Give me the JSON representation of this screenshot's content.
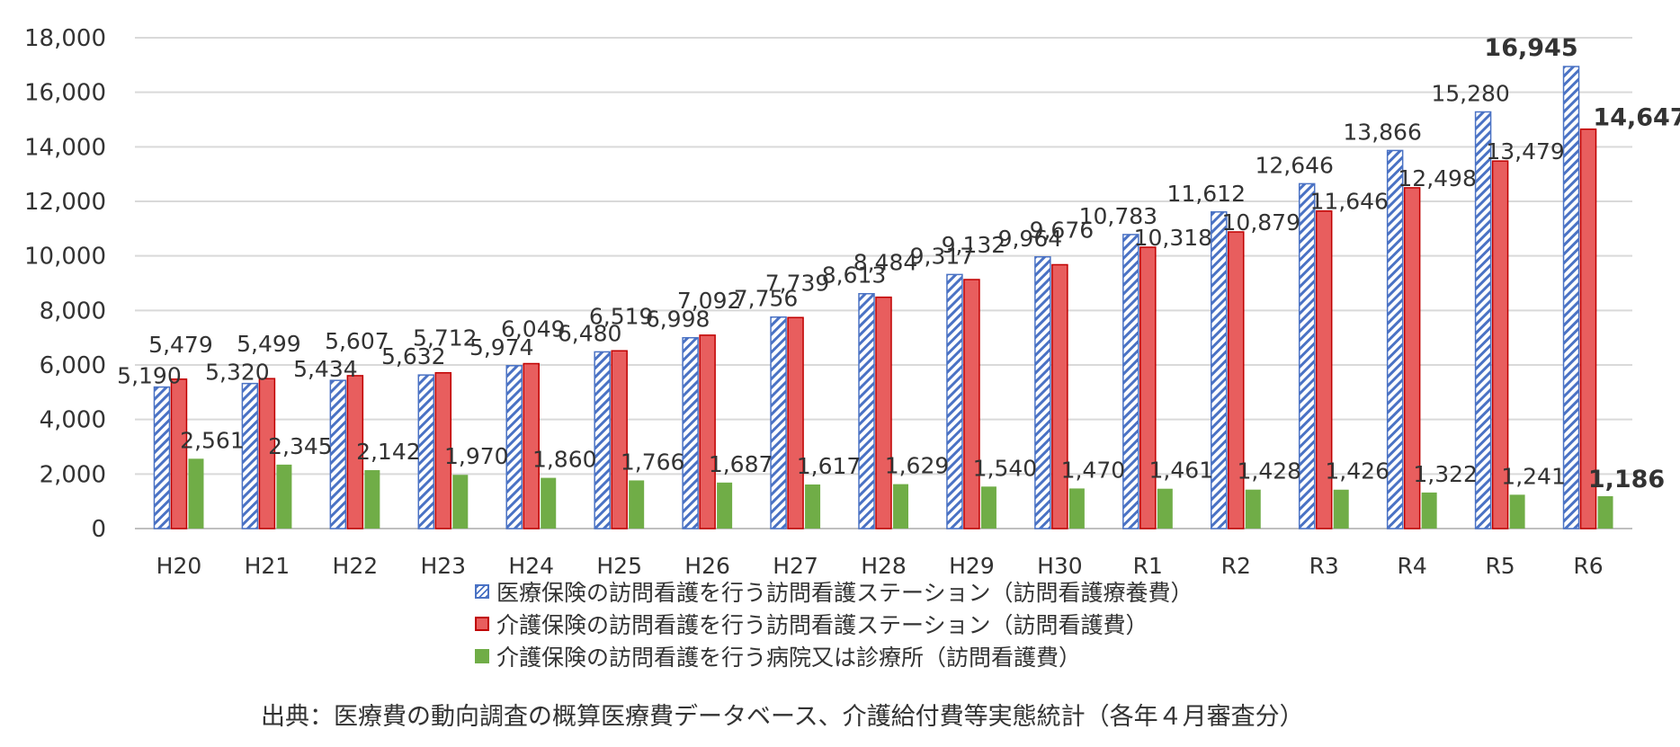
{
  "chart_data": {
    "type": "bar",
    "categories": [
      "H20",
      "H21",
      "H22",
      "H23",
      "H24",
      "H25",
      "H26",
      "H27",
      "H28",
      "H29",
      "H30",
      "R1",
      "R2",
      "R3",
      "R4",
      "R5",
      "R6"
    ],
    "series": [
      {
        "name": "医療保険の訪問看護を行う訪問看護ステーション（訪問看護療養費）",
        "color": "#4a72c4",
        "pattern": "hatch",
        "values": [
          5190,
          5320,
          5434,
          5632,
          5974,
          6480,
          6998,
          7756,
          8613,
          9317,
          9964,
          10783,
          11612,
          12646,
          13866,
          15280,
          16945
        ]
      },
      {
        "name": "介護保険の訪問看護を行う訪問看護ステーション（訪問看護費）",
        "color": "#e85e5e",
        "pattern": "solid",
        "values": [
          5479,
          5499,
          5607,
          5712,
          6049,
          6519,
          7092,
          7739,
          8484,
          9132,
          9676,
          10318,
          10879,
          11646,
          12498,
          13479,
          14647
        ]
      },
      {
        "name": "介護保険の訪問看護を行う病院又は診療所（訪問看護費）",
        "color": "#70ad47",
        "pattern": "solid",
        "values": [
          2561,
          2345,
          2142,
          1970,
          1860,
          1766,
          1687,
          1617,
          1629,
          1540,
          1470,
          1461,
          1428,
          1426,
          1322,
          1241,
          1186
        ]
      }
    ],
    "y_ticks": [
      "0",
      "2,000",
      "4,000",
      "6,000",
      "8,000",
      "10,000",
      "12,000",
      "14,000",
      "16,000",
      "18,000"
    ],
    "ylim": [
      0,
      18000
    ],
    "grid": true,
    "legend_position": "bottom"
  },
  "source_text": "出典：医療費の動向調査の概算医療費データベース、介護給付費等実態統計（各年４月審査分）"
}
